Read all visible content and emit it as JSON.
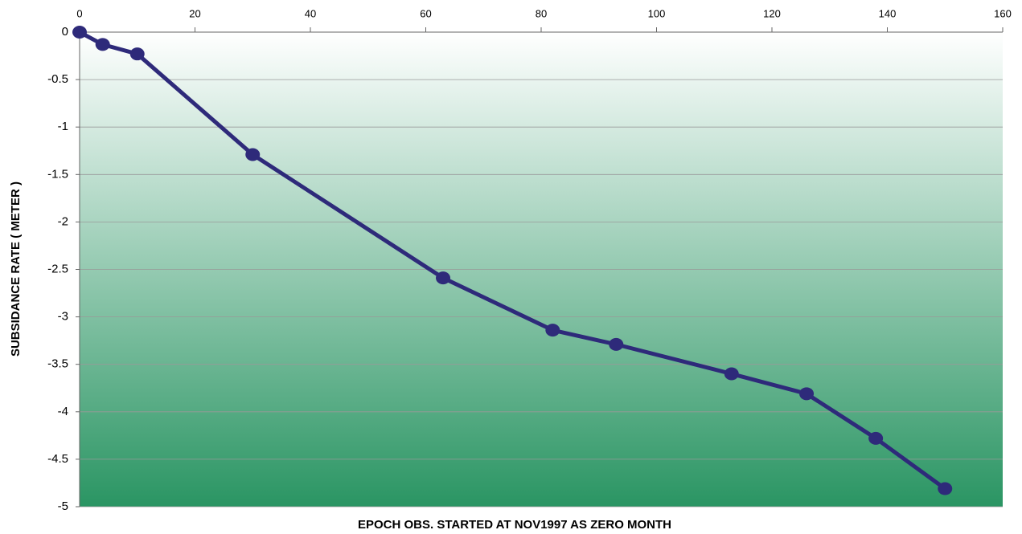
{
  "chart_data": {
    "type": "line",
    "x_label": "EPOCH OBS.  STARTED AT NOV1997 AS ZERO MONTH",
    "y_label": "SUBSIDANCE RATE ( METER )",
    "x": [
      0,
      4,
      10,
      30,
      63,
      82,
      93,
      113,
      126,
      138,
      150
    ],
    "values": [
      0,
      -0.13,
      -0.23,
      -1.29,
      -2.59,
      -3.14,
      -3.29,
      -3.6,
      -3.81,
      -4.28,
      -4.81
    ],
    "color": "#2e2a7a",
    "xlim": [
      0,
      160
    ],
    "xticks": [
      0,
      20,
      40,
      60,
      80,
      100,
      120,
      140,
      160
    ],
    "ylim": [
      -5,
      0
    ],
    "yticks": [
      0,
      -0.5,
      -1,
      -1.5,
      -2,
      -2.5,
      -3,
      -3.5,
      -4,
      -4.5,
      -5
    ],
    "grid": true
  }
}
